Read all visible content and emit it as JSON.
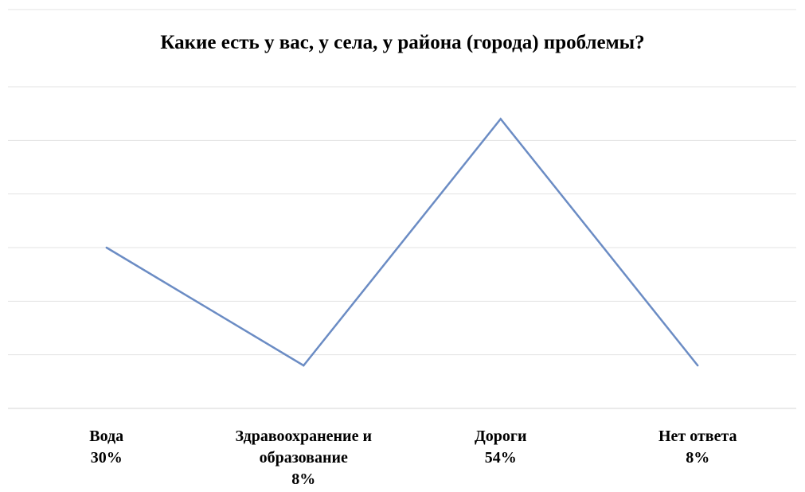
{
  "chart_data": {
    "type": "line",
    "title": "Какие есть у вас, у села, у района (города) проблемы?",
    "categories": [
      {
        "lines": [
          "Вода",
          "30%"
        ]
      },
      {
        "lines": [
          "Здравоохранение и",
          "образование",
          "8%"
        ]
      },
      {
        "lines": [
          "Дороги",
          "54%"
        ]
      },
      {
        "lines": [
          "Нет ответа",
          "8%"
        ]
      }
    ],
    "values": [
      30,
      8,
      54,
      8
    ],
    "ylim": [
      0,
      60
    ],
    "grid": true,
    "legend": "none",
    "line_color": "#6b8cc4",
    "grid_color": "#e3e3e3"
  }
}
